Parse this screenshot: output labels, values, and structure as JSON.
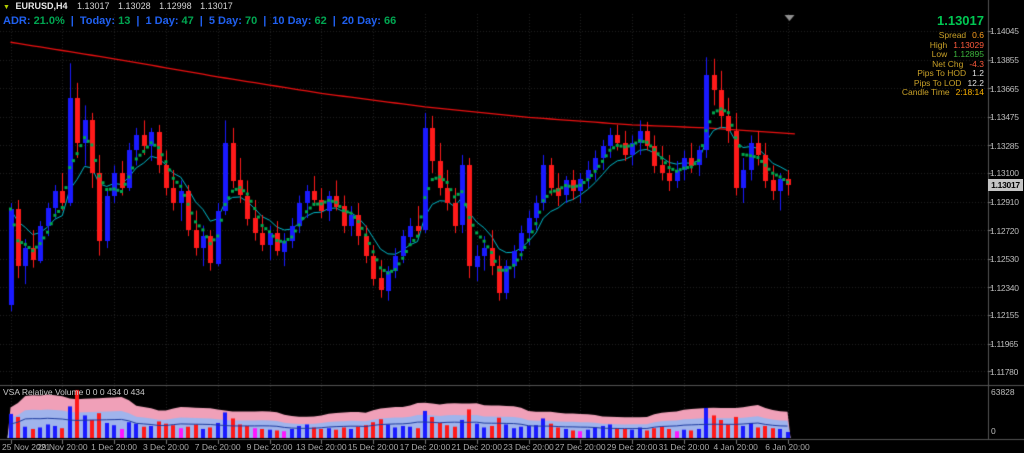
{
  "header": {
    "symbol": "EURUSD,H4",
    "open": "1.13017",
    "high": "1.13028",
    "low": "1.12998",
    "close": "1.13017"
  },
  "adr": {
    "adr_label": "ADR:",
    "adr_value": "21.0%",
    "items": [
      {
        "label": "Today:",
        "value": "13"
      },
      {
        "label": "1 Day:",
        "value": "47"
      },
      {
        "label": "5 Day:",
        "value": "70"
      },
      {
        "label": "10 Day:",
        "value": "62"
      },
      {
        "label": "20 Day:",
        "value": "66"
      }
    ]
  },
  "info_panel": {
    "price": "1.13017",
    "rows": [
      {
        "label": "Spread",
        "value": "0.6",
        "value_color": "#ffa01e"
      },
      {
        "label": "High",
        "value": "1.13029",
        "value_color": "#ff5a3c"
      },
      {
        "label": "Low",
        "value": "1.12895",
        "value_color": "#3cb43c"
      },
      {
        "label": "Net Chg",
        "value": "-4.3",
        "value_color": "#ff5a3c"
      },
      {
        "label": "Pips To HOD",
        "value": "1.2",
        "value_color": "#e0e0e0"
      },
      {
        "label": "Pips To LOD",
        "value": "12.2",
        "value_color": "#e0e0e0"
      },
      {
        "label": "Candle Time",
        "value": "2:18:14",
        "value_color": "#ffb400"
      }
    ]
  },
  "price_axis": {
    "labels": [
      "1.14045",
      "1.13855",
      "1.13665",
      "1.13475",
      "1.13285",
      "1.13100",
      "1.12910",
      "1.12720",
      "1.12530",
      "1.12340",
      "1.12155",
      "1.11965",
      "1.11780"
    ],
    "current": "1.13017"
  },
  "time_axis": {
    "labels": [
      "25 Nov 2021",
      "29 Nov 20:00",
      "1 Dec 20:00",
      "3 Dec 20:00",
      "7 Dec 20:00",
      "9 Dec 20:00",
      "13 Dec 20:00",
      "15 Dec 20:00",
      "17 Dec 20:00",
      "21 Dec 20:00",
      "23 Dec 20:00",
      "27 Dec 20:00",
      "29 Dec 20:00",
      "31 Dec 20:00",
      "4 Jan 20:00",
      "6 Jan 20:00"
    ]
  },
  "volume_panel": {
    "title": "VSA Relative Volume 0 0 0 434 0 434",
    "scale_max": "63828",
    "scale_min": "0"
  },
  "chart_data": {
    "type": "candlestick",
    "symbol": "EURUSD",
    "timeframe": "H4",
    "price_top": 1.14158,
    "price_bottom": 1.11689,
    "bull_color": "#1a1aff",
    "bear_color": "#ff1a1a",
    "dot_ma_color": "#00a84e",
    "fast_ma_color": "#00b8c8",
    "slow_ma_color": "#ee1111",
    "candles": [
      [
        1.1222,
        1.129,
        1.1218,
        1.1286
      ],
      [
        1.1286,
        1.1292,
        1.124,
        1.1248
      ],
      [
        1.1248,
        1.1266,
        1.1236,
        1.126
      ],
      [
        1.126,
        1.1272,
        1.1247,
        1.1252
      ],
      [
        1.1252,
        1.1278,
        1.125,
        1.1275
      ],
      [
        1.1275,
        1.129,
        1.1268,
        1.1287
      ],
      [
        1.1287,
        1.1302,
        1.128,
        1.1298
      ],
      [
        1.1298,
        1.131,
        1.1285,
        1.129
      ],
      [
        1.129,
        1.1383,
        1.1288,
        1.136
      ],
      [
        1.136,
        1.137,
        1.132,
        1.133
      ],
      [
        1.133,
        1.1355,
        1.1315,
        1.1345
      ],
      [
        1.1345,
        1.135,
        1.13,
        1.131
      ],
      [
        1.131,
        1.1322,
        1.1255,
        1.1265
      ],
      [
        1.1265,
        1.13,
        1.126,
        1.1295
      ],
      [
        1.1295,
        1.1315,
        1.129,
        1.131
      ],
      [
        1.131,
        1.1318,
        1.1295,
        1.13
      ],
      [
        1.13,
        1.133,
        1.1298,
        1.1325
      ],
      [
        1.1325,
        1.134,
        1.1315,
        1.1335
      ],
      [
        1.1335,
        1.1345,
        1.1322,
        1.1328
      ],
      [
        1.1328,
        1.134,
        1.1318,
        1.1337
      ],
      [
        1.1337,
        1.1342,
        1.131,
        1.1315
      ],
      [
        1.1315,
        1.1325,
        1.1295,
        1.13
      ],
      [
        1.13,
        1.1312,
        1.1285,
        1.129
      ],
      [
        1.129,
        1.1305,
        1.1278,
        1.1298
      ],
      [
        1.1298,
        1.1302,
        1.1268,
        1.1272
      ],
      [
        1.1272,
        1.1285,
        1.1255,
        1.126
      ],
      [
        1.126,
        1.1275,
        1.1248,
        1.1268
      ],
      [
        1.1268,
        1.1272,
        1.1245,
        1.125
      ],
      [
        1.125,
        1.129,
        1.1248,
        1.1285
      ],
      [
        1.1285,
        1.1345,
        1.1282,
        1.133
      ],
      [
        1.133,
        1.134,
        1.13,
        1.1305
      ],
      [
        1.1305,
        1.132,
        1.129,
        1.1295
      ],
      [
        1.1295,
        1.1305,
        1.1275,
        1.128
      ],
      [
        1.128,
        1.1292,
        1.1265,
        1.127
      ],
      [
        1.127,
        1.1282,
        1.1258,
        1.1262
      ],
      [
        1.1262,
        1.1275,
        1.1252,
        1.127
      ],
      [
        1.127,
        1.1278,
        1.1255,
        1.1258
      ],
      [
        1.1258,
        1.127,
        1.1248,
        1.1265
      ],
      [
        1.1265,
        1.128,
        1.126,
        1.1275
      ],
      [
        1.1275,
        1.1295,
        1.127,
        1.129
      ],
      [
        1.129,
        1.1302,
        1.128,
        1.1298
      ],
      [
        1.1298,
        1.1308,
        1.1288,
        1.1292
      ],
      [
        1.1292,
        1.13,
        1.128,
        1.1285
      ],
      [
        1.1285,
        1.1298,
        1.1278,
        1.1295
      ],
      [
        1.1295,
        1.1305,
        1.1285,
        1.1288
      ],
      [
        1.1288,
        1.1295,
        1.127,
        1.1275
      ],
      [
        1.1275,
        1.1288,
        1.1268,
        1.1282
      ],
      [
        1.1282,
        1.129,
        1.1262,
        1.1268
      ],
      [
        1.1268,
        1.1275,
        1.125,
        1.1255
      ],
      [
        1.1255,
        1.1262,
        1.1235,
        1.124
      ],
      [
        1.124,
        1.1252,
        1.1227,
        1.1232
      ],
      [
        1.1232,
        1.1248,
        1.1225,
        1.1245
      ],
      [
        1.1245,
        1.126,
        1.124,
        1.1255
      ],
      [
        1.1255,
        1.1272,
        1.125,
        1.1268
      ],
      [
        1.1268,
        1.128,
        1.1262,
        1.1275
      ],
      [
        1.1275,
        1.1288,
        1.1268,
        1.1272
      ],
      [
        1.1272,
        1.135,
        1.127,
        1.134
      ],
      [
        1.134,
        1.1348,
        1.131,
        1.1318
      ],
      [
        1.1318,
        1.133,
        1.1295,
        1.13
      ],
      [
        1.13,
        1.1312,
        1.1285,
        1.129
      ],
      [
        1.129,
        1.13,
        1.127,
        1.1275
      ],
      [
        1.1275,
        1.1322,
        1.127,
        1.1315
      ],
      [
        1.1315,
        1.132,
        1.124,
        1.1248
      ],
      [
        1.1248,
        1.1262,
        1.1238,
        1.1255
      ],
      [
        1.1255,
        1.1268,
        1.1245,
        1.126
      ],
      [
        1.126,
        1.1272,
        1.1242,
        1.1248
      ],
      [
        1.1248,
        1.1255,
        1.1225,
        1.123
      ],
      [
        1.123,
        1.1252,
        1.1226,
        1.1248
      ],
      [
        1.1248,
        1.1262,
        1.124,
        1.1258
      ],
      [
        1.1258,
        1.1275,
        1.1252,
        1.127
      ],
      [
        1.127,
        1.1285,
        1.1262,
        1.128
      ],
      [
        1.128,
        1.1295,
        1.1272,
        1.129
      ],
      [
        1.129,
        1.1322,
        1.1285,
        1.1315
      ],
      [
        1.1315,
        1.132,
        1.1295,
        1.13
      ],
      [
        1.13,
        1.131,
        1.1288,
        1.1295
      ],
      [
        1.1295,
        1.1308,
        1.129,
        1.1305
      ],
      [
        1.1305,
        1.1312,
        1.1292,
        1.1298
      ],
      [
        1.1298,
        1.131,
        1.129,
        1.1306
      ],
      [
        1.1306,
        1.1318,
        1.13,
        1.1312
      ],
      [
        1.1312,
        1.1325,
        1.1305,
        1.132
      ],
      [
        1.132,
        1.1332,
        1.1312,
        1.1328
      ],
      [
        1.1328,
        1.134,
        1.132,
        1.1335
      ],
      [
        1.1335,
        1.1342,
        1.1325,
        1.133
      ],
      [
        1.133,
        1.1338,
        1.1318,
        1.1322
      ],
      [
        1.1322,
        1.1335,
        1.1315,
        1.133
      ],
      [
        1.133,
        1.1345,
        1.1322,
        1.1338
      ],
      [
        1.1338,
        1.1344,
        1.1325,
        1.1328
      ],
      [
        1.1328,
        1.1335,
        1.131,
        1.1315
      ],
      [
        1.1315,
        1.1328,
        1.1305,
        1.131
      ],
      [
        1.131,
        1.1322,
        1.1298,
        1.1305
      ],
      [
        1.1305,
        1.1318,
        1.13,
        1.1312
      ],
      [
        1.1312,
        1.1325,
        1.1305,
        1.132
      ],
      [
        1.132,
        1.133,
        1.131,
        1.1315
      ],
      [
        1.1315,
        1.1328,
        1.1308,
        1.1325
      ],
      [
        1.1325,
        1.1387,
        1.132,
        1.1375
      ],
      [
        1.1375,
        1.1386,
        1.1355,
        1.1365
      ],
      [
        1.1365,
        1.1378,
        1.134,
        1.1348
      ],
      [
        1.1348,
        1.136,
        1.133,
        1.1338
      ],
      [
        1.1338,
        1.135,
        1.1295,
        1.13
      ],
      [
        1.13,
        1.132,
        1.129,
        1.1312
      ],
      [
        1.1312,
        1.1335,
        1.1305,
        1.133
      ],
      [
        1.133,
        1.1338,
        1.1315,
        1.1322
      ],
      [
        1.1322,
        1.133,
        1.13,
        1.1305
      ],
      [
        1.1305,
        1.1315,
        1.1292,
        1.1298
      ],
      [
        1.1298,
        1.131,
        1.1285,
        1.1306
      ],
      [
        1.1306,
        1.1312,
        1.1295,
        1.13017
      ]
    ],
    "slow_ma_anchors": [
      [
        0,
        1.1397
      ],
      [
        14,
        1.1386
      ],
      [
        28,
        1.1374
      ],
      [
        42,
        1.1363
      ],
      [
        56,
        1.1354
      ],
      [
        70,
        1.1347
      ],
      [
        84,
        1.1342
      ],
      [
        94,
        1.134
      ],
      [
        106,
        1.1336
      ]
    ],
    "volume": {
      "max_scale": 63828,
      "values": [
        32000,
        28000,
        15000,
        12000,
        14000,
        18000,
        16000,
        13000,
        42000,
        63828,
        30000,
        24000,
        33000,
        20000,
        17000,
        12000,
        21000,
        19000,
        15000,
        16000,
        22000,
        19000,
        17000,
        13000,
        15000,
        18000,
        12000,
        14000,
        20000,
        34000,
        26000,
        18000,
        16000,
        13000,
        12000,
        11000,
        10000,
        9000,
        12000,
        16000,
        18000,
        14000,
        12000,
        13000,
        11000,
        14000,
        12000,
        15000,
        17000,
        21000,
        25000,
        18000,
        14000,
        16000,
        15000,
        13000,
        36000,
        28000,
        20000,
        17000,
        15000,
        24000,
        38000,
        19000,
        14000,
        16000,
        27000,
        18000,
        13000,
        15000,
        16000,
        17000,
        26000,
        19000,
        14000,
        12000,
        10000,
        9000,
        11000,
        14000,
        16000,
        18000,
        13000,
        12000,
        11000,
        14000,
        10000,
        13000,
        15000,
        12000,
        9000,
        11000,
        10000,
        12000,
        40000,
        30000,
        24000,
        18000,
        28000,
        16000,
        20000,
        14000,
        16000,
        13000,
        12000,
        8000
      ],
      "colors": "brbrbbbrbrbrrbbmbbrbrrrmrrbrbbrrrmrbrmbbbrrbrrbrrrrbbbbrbrrrrbrbbrrbbbbbbrrbrmbbbbrrbbrrrrmbrbbrrrrbbrrrbb",
      "band_pink": "#f0a0b8",
      "band_blue": "#a0b4ec",
      "avg_line": "#1e3ca0",
      "magenta": "#ff14ff"
    }
  }
}
